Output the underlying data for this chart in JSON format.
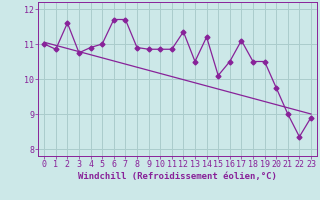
{
  "xlabel": "Windchill (Refroidissement éolien,°C)",
  "background_color": "#cce8e8",
  "grid_color": "#aacccc",
  "line_color": "#882299",
  "hours": [
    0,
    1,
    2,
    3,
    4,
    5,
    6,
    7,
    8,
    9,
    10,
    11,
    12,
    13,
    14,
    15,
    16,
    17,
    18,
    19,
    20,
    21,
    22,
    23
  ],
  "values": [
    11.0,
    10.85,
    11.6,
    10.75,
    10.9,
    11.0,
    11.7,
    11.7,
    10.9,
    10.85,
    10.85,
    10.85,
    11.35,
    10.5,
    11.2,
    10.1,
    10.5,
    11.1,
    10.5,
    10.5,
    9.75,
    9.0,
    8.35,
    8.9
  ],
  "trend_start": 11.05,
  "trend_end": 9.0,
  "ylim": [
    7.8,
    12.2
  ],
  "xlim": [
    -0.5,
    23.5
  ],
  "yticks": [
    8,
    9,
    10,
    11,
    12
  ],
  "xticks": [
    0,
    1,
    2,
    3,
    4,
    5,
    6,
    7,
    8,
    9,
    10,
    11,
    12,
    13,
    14,
    15,
    16,
    17,
    18,
    19,
    20,
    21,
    22,
    23
  ],
  "font_color": "#882299",
  "font_family": "monospace",
  "tick_fontsize": 6.0,
  "xlabel_fontsize": 6.5
}
